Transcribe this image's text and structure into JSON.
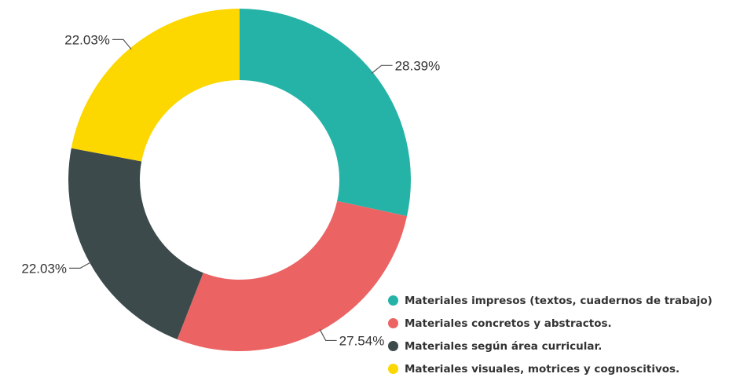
{
  "chart_data": {
    "type": "pie",
    "donut": true,
    "legend_position": "bottom-right",
    "series": [
      {
        "name": "Materiales impresos (textos, cuadernos de trabajo)",
        "value": 28.39,
        "label": "28.39%",
        "color": "#26B3A7"
      },
      {
        "name": "Materiales concretos y abstractos.",
        "value": 27.54,
        "label": "27.54%",
        "color": "#EB6463"
      },
      {
        "name": "Materiales según área curricular.",
        "value": 22.03,
        "label": "22.03%",
        "color": "#3C4A4C"
      },
      {
        "name": "Materiales visuales, motrices y cognoscitivos.",
        "value": 22.03,
        "label": "22.03%",
        "color": "#FCD700"
      }
    ]
  }
}
